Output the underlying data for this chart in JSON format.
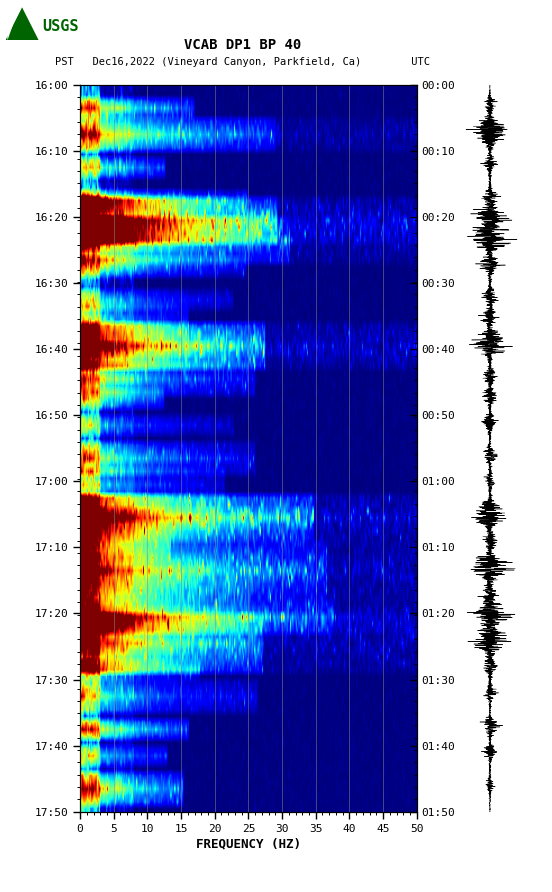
{
  "title_line1": "VCAB DP1 BP 40",
  "title_line2": "PST   Dec16,2022 (Vineyard Canyon, Parkfield, Ca)        UTC",
  "xlabel": "FREQUENCY (HZ)",
  "freq_min": 0,
  "freq_max": 50,
  "n_time": 110,
  "n_freq": 300,
  "pst_ticks": [
    "16:00",
    "16:10",
    "16:20",
    "16:30",
    "16:40",
    "16:50",
    "17:00",
    "17:10",
    "17:20",
    "17:30",
    "17:40",
    "17:50"
  ],
  "utc_ticks": [
    "00:00",
    "00:10",
    "00:20",
    "00:30",
    "00:40",
    "00:50",
    "01:00",
    "01:10",
    "01:20",
    "01:30",
    "01:40",
    "01:50"
  ],
  "freq_ticks": [
    0,
    5,
    10,
    15,
    20,
    25,
    30,
    35,
    40,
    45,
    50
  ],
  "grid_freqs": [
    5,
    10,
    15,
    20,
    25,
    30,
    35,
    40,
    45
  ],
  "colormap": "jet",
  "bg_color": "#ffffff",
  "grid_color": "#888888",
  "title_color": "#000000",
  "font_family": "monospace",
  "font_size_title": 10,
  "font_size_axis": 9,
  "font_size_tick": 8,
  "usgs_logo_color": "#006400",
  "noise_seed": 42,
  "wave_seed": 99,
  "event_times": [
    3,
    7,
    12,
    17,
    20,
    23,
    27,
    32,
    35,
    39,
    44,
    47,
    51,
    56,
    60,
    65,
    69,
    73,
    77,
    80,
    84,
    88,
    92,
    97,
    101,
    106
  ],
  "strong_events": [
    7,
    20,
    23,
    39,
    65,
    73,
    80,
    84
  ],
  "vmax_scale": 0.85
}
